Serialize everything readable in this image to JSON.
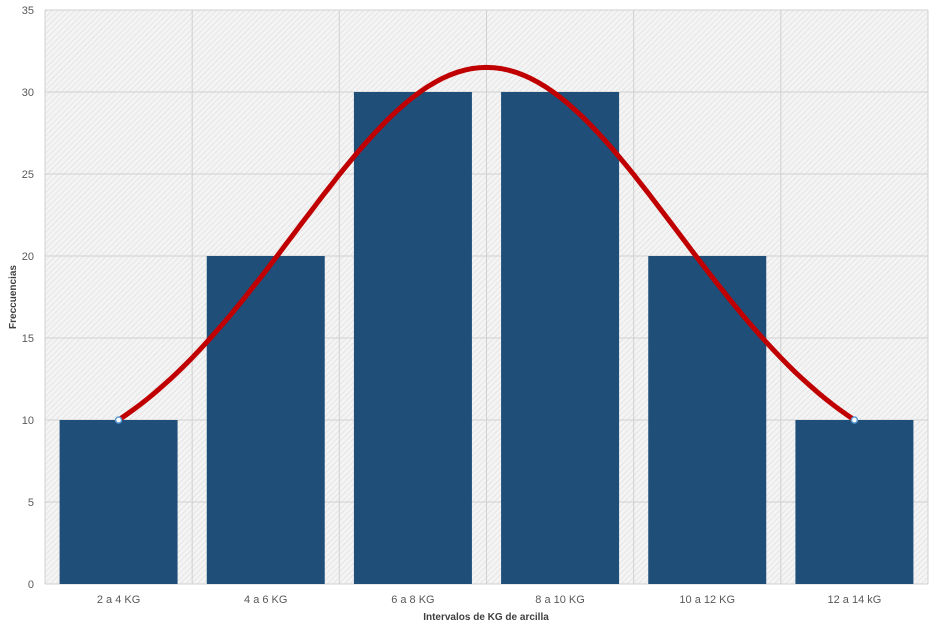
{
  "chart_data": {
    "type": "bar",
    "title": "",
    "xlabel": "Intervalos de KG de arcilla",
    "ylabel": "Freccuencias",
    "categories": [
      "2 a 4 KG",
      "4 a 6 KG",
      "6 a 8 KG",
      "8 a 10 KG",
      "10 a 12 KG",
      "12 a 14 kG"
    ],
    "series": [
      {
        "values": [
          10,
          20,
          30,
          30,
          20,
          10
        ],
        "color": "#1f4e79"
      }
    ],
    "overlay_line": {
      "type": "line",
      "style": "smooth",
      "color": "#c00000",
      "x_points": [
        0,
        5
      ],
      "y_points": [
        10,
        10
      ],
      "peak": {
        "x": 2.5,
        "y": 31.5
      }
    },
    "ylim": [
      0,
      35
    ],
    "yticks": [
      0,
      5,
      10,
      15,
      20,
      25,
      30,
      35
    ],
    "grid": true,
    "plot_background": "hatched-light-gray",
    "legend": "none"
  }
}
